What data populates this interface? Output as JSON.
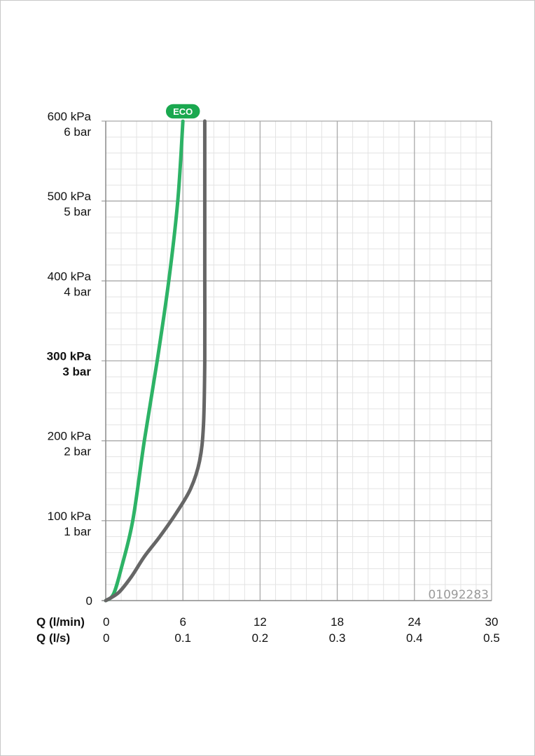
{
  "chart_data": {
    "type": "line",
    "xlabel_primary": "Q (l/min)",
    "xlabel_secondary": "Q (l/s)",
    "x_ticks_primary": [
      "0",
      "6",
      "12",
      "18",
      "24",
      "30"
    ],
    "x_ticks_secondary": [
      "0",
      "0.1",
      "0.2",
      "0.3",
      "0.4",
      "0.5"
    ],
    "xlim": [
      0,
      30
    ],
    "ylim": [
      0,
      600
    ],
    "y_ticks": [
      {
        "value": 0,
        "kpa": "0",
        "bar": "",
        "bold": false
      },
      {
        "value": 100,
        "kpa": "100 kPa",
        "bar": "1 bar",
        "bold": false
      },
      {
        "value": 200,
        "kpa": "200 kPa",
        "bar": "2 bar",
        "bold": false
      },
      {
        "value": 300,
        "kpa": "300 kPa",
        "bar": "3 bar",
        "bold": true
      },
      {
        "value": 400,
        "kpa": "400 kPa",
        "bar": "4 bar",
        "bold": false
      },
      {
        "value": 500,
        "kpa": "500 kPa",
        "bar": "5 bar",
        "bold": false
      },
      {
        "value": 600,
        "kpa": "600 kPa",
        "bar": "6 bar",
        "bold": false
      }
    ],
    "grid": true,
    "series": [
      {
        "name": "ECO",
        "color": "#2db366",
        "points": [
          [
            0,
            0
          ],
          [
            0.6,
            8
          ],
          [
            1.2,
            40
          ],
          [
            2.1,
            100
          ],
          [
            3.0,
            200
          ],
          [
            4.0,
            300
          ],
          [
            4.9,
            400
          ],
          [
            5.6,
            500
          ],
          [
            6.0,
            600
          ]
        ]
      },
      {
        "color": "#666666",
        "points": [
          [
            0,
            0
          ],
          [
            1.0,
            10
          ],
          [
            2.0,
            30
          ],
          [
            3.0,
            55
          ],
          [
            4.2,
            80
          ],
          [
            5.5,
            110
          ],
          [
            6.6,
            140
          ],
          [
            7.3,
            175
          ],
          [
            7.6,
            220
          ],
          [
            7.7,
            300
          ],
          [
            7.7,
            400
          ],
          [
            7.7,
            500
          ],
          [
            7.7,
            600
          ]
        ]
      }
    ],
    "annotations": {
      "badge": "ECO",
      "code": "01092283"
    }
  }
}
